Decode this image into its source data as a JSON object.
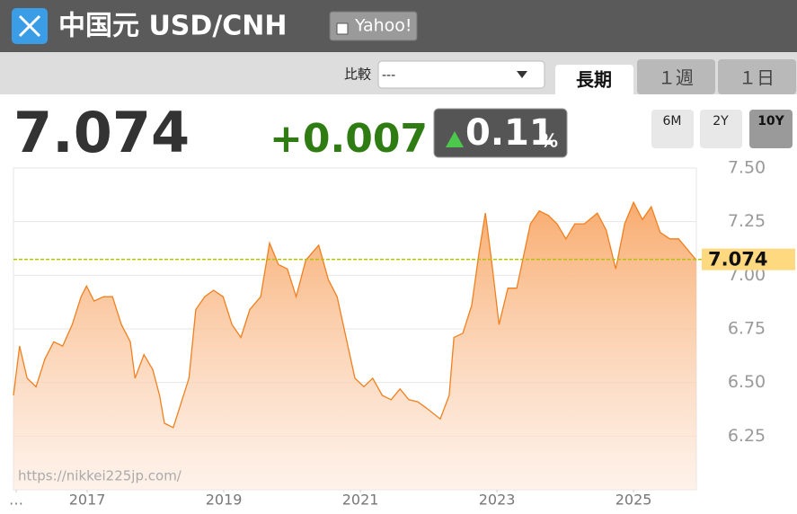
{
  "header": {
    "title": "中国元 USD/CNH",
    "link": "Yahoo!"
  },
  "nav": {
    "compare_label": "比較",
    "compare_value": "---",
    "tabs": [
      "長期",
      "１週",
      "１日"
    ]
  },
  "quote": {
    "price": "7.074",
    "change": "+0.007",
    "change_pct": "0.11",
    "pct_unit": "%"
  },
  "ranges": [
    "6M",
    "2Y",
    "10Y"
  ],
  "chart_data": {
    "type": "area",
    "color": "#f08020",
    "xlim": [
      2015.92,
      2025.92
    ],
    "xticks": [
      {
        "value": 2015.96,
        "label": "…"
      },
      2017,
      2019,
      2021,
      2023,
      2025
    ],
    "ylim": [
      6.0,
      7.5
    ],
    "yticks": [
      {
        "value": 6.25,
        "label": "6.25"
      },
      {
        "value": 6.5,
        "label": "6.50"
      },
      {
        "value": 6.75,
        "label": "6.75"
      },
      {
        "value": 7.0,
        "label": "7.00"
      },
      {
        "value": 7.25,
        "label": "7.25"
      },
      {
        "value": 7.5,
        "label": "7.50"
      }
    ],
    "grid": true,
    "reference_line": 7.074,
    "watermark": "https://nikkei225jp.com/",
    "x": [
      2015.92,
      2016.01,
      2016.12,
      2016.25,
      2016.38,
      2016.51,
      2016.64,
      2016.78,
      2016.91,
      2016.99,
      2017.1,
      2017.24,
      2017.37,
      2017.5,
      2017.63,
      2017.7,
      2017.83,
      2017.96,
      2018.06,
      2018.13,
      2018.26,
      2018.35,
      2018.49,
      2018.59,
      2018.72,
      2018.85,
      2018.99,
      2019.12,
      2019.25,
      2019.38,
      2019.54,
      2019.67,
      2019.8,
      2019.93,
      2020.06,
      2020.2,
      2020.39,
      2020.53,
      2020.66,
      2020.79,
      2020.92,
      2021.05,
      2021.18,
      2021.32,
      2021.45,
      2021.58,
      2021.71,
      2021.84,
      2021.97,
      2022.17,
      2022.3,
      2022.37,
      2022.5,
      2022.63,
      2022.74,
      2022.83,
      2022.92,
      2023.03,
      2023.16,
      2023.29,
      2023.39,
      2023.49,
      2023.62,
      2023.75,
      2023.88,
      2024.01,
      2024.14,
      2024.28,
      2024.47,
      2024.6,
      2024.74,
      2024.87,
      2025.0,
      2025.13,
      2025.26,
      2025.39,
      2025.53,
      2025.66,
      2025.79,
      2025.92
    ],
    "values": [
      6.44,
      6.67,
      6.52,
      6.48,
      6.61,
      6.69,
      6.67,
      6.77,
      6.9,
      6.95,
      6.88,
      6.9,
      6.9,
      6.77,
      6.69,
      6.52,
      6.63,
      6.56,
      6.44,
      6.31,
      6.29,
      6.38,
      6.52,
      6.84,
      6.9,
      6.93,
      6.9,
      6.77,
      6.71,
      6.84,
      6.9,
      7.15,
      7.05,
      7.03,
      6.9,
      7.07,
      7.14,
      6.98,
      6.9,
      6.71,
      6.52,
      6.48,
      6.52,
      6.44,
      6.42,
      6.47,
      6.42,
      6.41,
      6.38,
      6.33,
      6.44,
      6.71,
      6.73,
      6.86,
      7.11,
      7.29,
      7.07,
      6.77,
      6.94,
      6.94,
      7.09,
      7.24,
      7.3,
      7.28,
      7.24,
      7.17,
      7.24,
      7.24,
      7.29,
      7.21,
      7.03,
      7.24,
      7.34,
      7.26,
      7.32,
      7.2,
      7.17,
      7.17,
      7.12,
      7.07
    ]
  }
}
